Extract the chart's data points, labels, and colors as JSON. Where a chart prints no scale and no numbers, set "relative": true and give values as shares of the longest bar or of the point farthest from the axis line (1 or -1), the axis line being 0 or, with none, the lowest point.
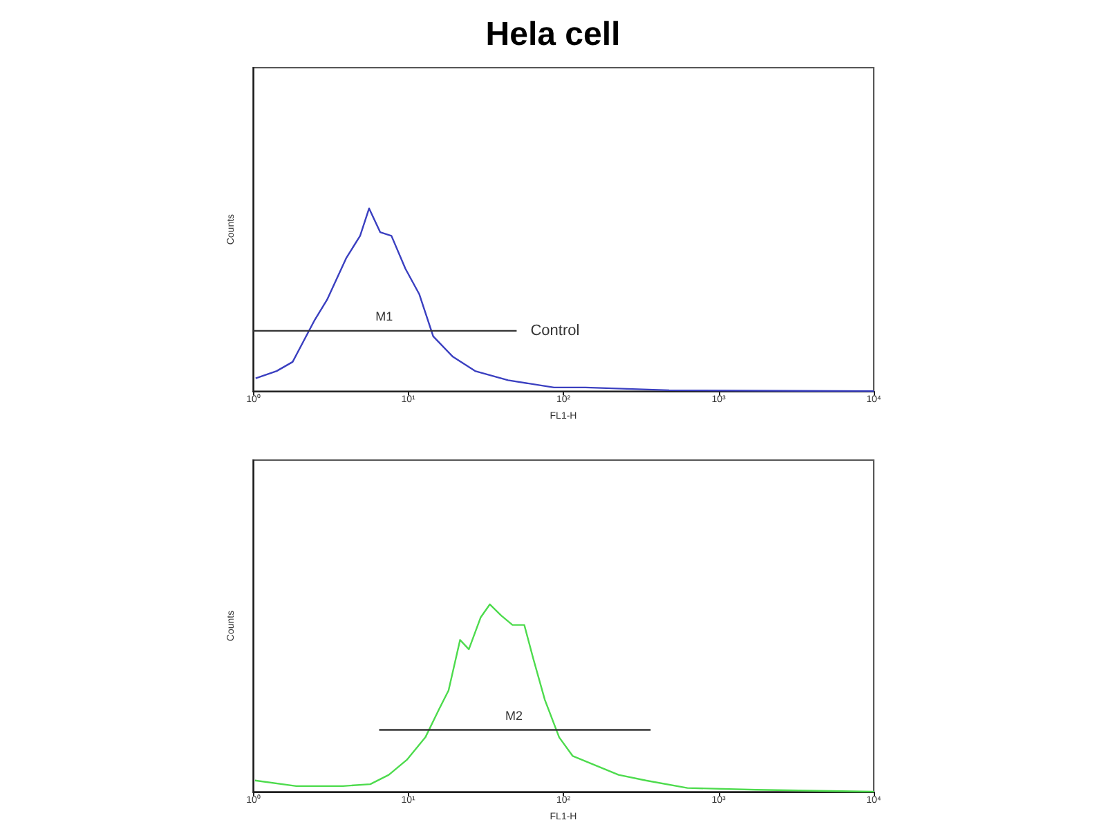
{
  "chart_data": [
    {
      "type": "line",
      "title": "Hela cell",
      "xlabel": "FL1-H",
      "ylabel": "Counts",
      "relative": true,
      "log": "x",
      "xlim": [
        1,
        10000
      ],
      "xticks": [
        {
          "value": 1,
          "label": "10⁰"
        },
        {
          "value": 10,
          "label": "10¹"
        },
        {
          "value": 100,
          "label": "10²"
        },
        {
          "value": 1000,
          "label": "10³"
        },
        {
          "value": 10000,
          "label": "10⁴"
        }
      ],
      "marker": "none",
      "annotations": [
        {
          "text": "M1",
          "x": 7,
          "y": 0.33
        },
        {
          "text": "Control",
          "x": 50,
          "y": 0.33
        }
      ],
      "series": [
        {
          "color": "#3a3fc0",
          "x": [
            1.04,
            1.42,
            1.8,
            2.5,
            3.0,
            4.0,
            4.9,
            5.6,
            6.6,
            7.8,
            9.6,
            11.8,
            14.5,
            19.3,
            27,
            44,
            87,
            139,
            480,
            10000
          ],
          "values": [
            0.07,
            0.11,
            0.16,
            0.39,
            0.5,
            0.73,
            0.85,
            1.0,
            0.87,
            0.85,
            0.67,
            0.53,
            0.3,
            0.19,
            0.11,
            0.06,
            0.02,
            0.02,
            0.005,
            0
          ]
        },
        {
          "color": "#333333",
          "x": [
            1,
            50
          ],
          "values": [
            0.33,
            0.33
          ]
        }
      ]
    },
    {
      "type": "line",
      "xlabel": "FL1-H",
      "ylabel": "Counts",
      "relative": true,
      "log": "x",
      "xlim": [
        1,
        10000
      ],
      "xticks": [
        {
          "value": 1,
          "label": "10⁰"
        },
        {
          "value": 10,
          "label": "10¹"
        },
        {
          "value": 100,
          "label": "10²"
        },
        {
          "value": 1000,
          "label": "10³"
        },
        {
          "value": 10000,
          "label": "10⁴"
        }
      ],
      "marker": "none",
      "annotations": [
        {
          "text": "M2",
          "x": 48,
          "y": 0.33
        }
      ],
      "series": [
        {
          "color": "#4ddb4d",
          "x": [
            1.03,
            1.9,
            3.8,
            5.7,
            7.5,
            9.8,
            12.9,
            15.8,
            18.2,
            21.6,
            24.6,
            29.3,
            33.6,
            39.8,
            47,
            56,
            64,
            76,
            94,
            115,
            162,
            227,
            340,
            630,
            1750,
            10000
          ],
          "values": [
            0.06,
            0.03,
            0.03,
            0.04,
            0.09,
            0.17,
            0.29,
            0.44,
            0.54,
            0.81,
            0.76,
            0.93,
            1.0,
            0.94,
            0.89,
            0.89,
            0.71,
            0.49,
            0.29,
            0.19,
            0.14,
            0.09,
            0.06,
            0.02,
            0.01,
            0
          ]
        },
        {
          "color": "#333333",
          "x": [
            6.5,
            365
          ],
          "values": [
            0.33,
            0.33
          ]
        }
      ]
    }
  ]
}
